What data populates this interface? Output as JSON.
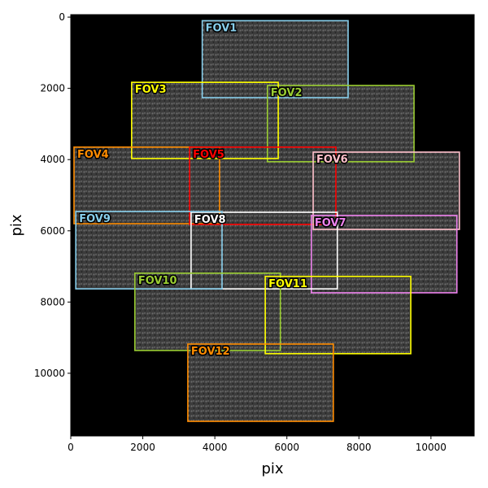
{
  "chart_data": {
    "type": "boxes",
    "xlabel": "pix",
    "ylabel": "pix",
    "xlim": [
      0,
      11200
    ],
    "ylim": [
      11760,
      -70
    ],
    "xticks": [
      0,
      2000,
      4000,
      6000,
      8000,
      10000
    ],
    "yticks": [
      0,
      2000,
      4000,
      6000,
      8000,
      10000
    ],
    "series": [
      {
        "name": "FOV1",
        "color": "#87ceeb",
        "x": [
          3650,
          7700
        ],
        "y": [
          100,
          2260
        ]
      },
      {
        "name": "FOV2",
        "color": "#9acd32",
        "x": [
          5460,
          9530
        ],
        "y": [
          1920,
          4060
        ]
      },
      {
        "name": "FOV3",
        "color": "#ffff00",
        "x": [
          1690,
          5760
        ],
        "y": [
          1830,
          3970
        ]
      },
      {
        "name": "FOV4",
        "color": "#ff8c00",
        "x": [
          90,
          4130
        ],
        "y": [
          3650,
          5800
        ]
      },
      {
        "name": "FOV5",
        "color": "#ff0000",
        "x": [
          3300,
          7360
        ],
        "y": [
          3650,
          5820
        ]
      },
      {
        "name": "FOV6",
        "color": "#ffc0cb",
        "x": [
          6730,
          10790
        ],
        "y": [
          3790,
          5960
        ]
      },
      {
        "name": "FOV7",
        "color": "#ee82ee",
        "x": [
          6680,
          10720
        ],
        "y": [
          5570,
          7740
        ]
      },
      {
        "name": "FOV8",
        "color": "#ffffff",
        "x": [
          3340,
          7400
        ],
        "y": [
          5480,
          7630
        ]
      },
      {
        "name": "FOV9",
        "color": "#87ceeb",
        "x": [
          140,
          4200
        ],
        "y": [
          5460,
          7630
        ]
      },
      {
        "name": "FOV10",
        "color": "#9acd32",
        "x": [
          1780,
          5820
        ],
        "y": [
          7190,
          9360
        ]
      },
      {
        "name": "FOV11",
        "color": "#ffff00",
        "x": [
          5400,
          9440
        ],
        "y": [
          7280,
          9450
        ]
      },
      {
        "name": "FOV12",
        "color": "#ff8c00",
        "x": [
          3250,
          7290
        ],
        "y": [
          9180,
          11350
        ]
      }
    ]
  }
}
